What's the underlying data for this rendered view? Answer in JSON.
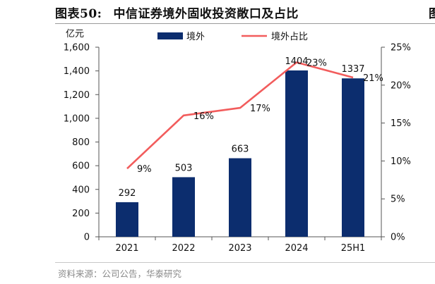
{
  "figure": {
    "number": "图表50:",
    "title": "中信证券境外固收投资敞口及占比",
    "source": "资料来源：公司公告，华泰研究",
    "edge_fragment": "图"
  },
  "chart_data": {
    "type": "bar",
    "categories": [
      "2021",
      "2022",
      "2023",
      "2024",
      "25H1"
    ],
    "y_unit_label": "亿元",
    "ylim": [
      0,
      1600
    ],
    "yticks": [
      "0",
      "200",
      "400",
      "600",
      "800",
      "1,000",
      "1,200",
      "1,400",
      "1,600"
    ],
    "y2lim": [
      0,
      25
    ],
    "y2ticks": [
      "0%",
      "5%",
      "10%",
      "15%",
      "20%",
      "25%"
    ],
    "legend_position": "top",
    "grid": false,
    "series": [
      {
        "name": "境外",
        "type": "bar",
        "axis": "left",
        "color": "#0c2d6e",
        "values": [
          292,
          503,
          663,
          1404,
          1337
        ],
        "labels": [
          "292",
          "503",
          "663",
          "1404",
          "1337"
        ]
      },
      {
        "name": "境外占比",
        "type": "line",
        "axis": "right",
        "color": "#f25c5c",
        "values": [
          9,
          16,
          17,
          23,
          21
        ],
        "labels": [
          "9%",
          "16%",
          "17%",
          "23%",
          "21%"
        ]
      }
    ]
  }
}
